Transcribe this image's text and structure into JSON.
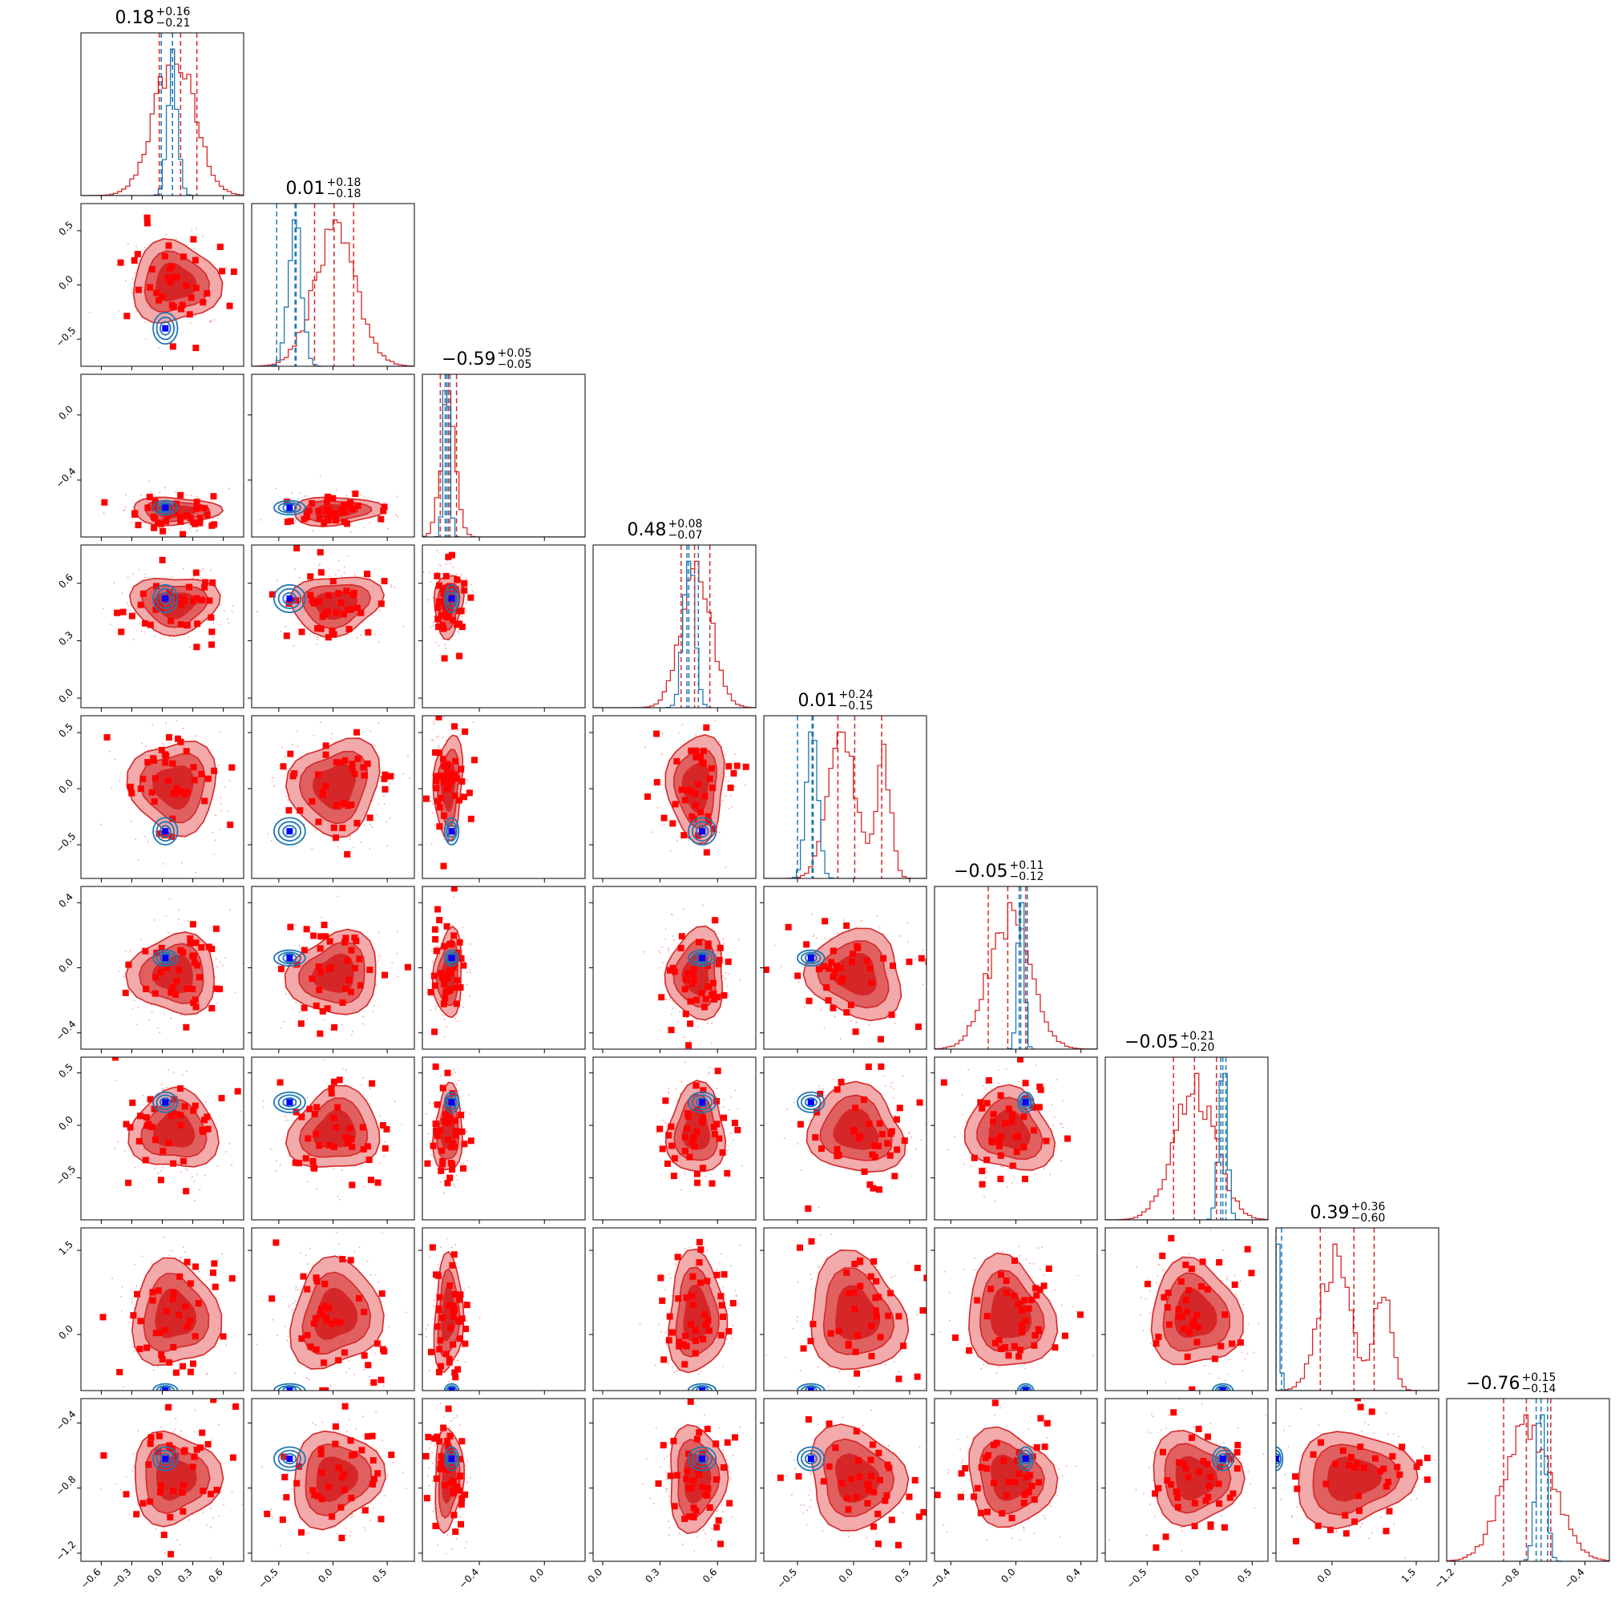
{
  "colors": {
    "red": "#d62728",
    "red_fill_outer": "#f2aaaa",
    "red_fill_inner": "#e06060",
    "red_core": "#d62728",
    "red_marker": "#ff0000",
    "blue": "#1f77b4",
    "blue_marker": "#0000ff",
    "frame": "#000000"
  },
  "chart_data": {
    "type": "corner",
    "n_params": 9,
    "title_format": "median with +upper/-lower errors",
    "diagonal_titles": [
      {
        "value": "0.18",
        "plus": "+0.16",
        "minus": "−0.21"
      },
      {
        "value": "0.01",
        "plus": "+0.18",
        "minus": "−0.18"
      },
      {
        "value": "−0.59",
        "plus": "+0.05",
        "minus": "−0.05"
      },
      {
        "value": "0.48",
        "plus": "+0.08",
        "minus": "−0.07"
      },
      {
        "value": "0.01",
        "plus": "+0.24",
        "minus": "−0.15"
      },
      {
        "value": "−0.05",
        "plus": "+0.11",
        "minus": "−0.12"
      },
      {
        "value": "−0.05",
        "plus": "+0.21",
        "minus": "−0.20"
      },
      {
        "value": "0.39",
        "plus": "+0.36",
        "minus": "−0.60"
      },
      {
        "value": "−0.76",
        "plus": "+0.15",
        "minus": "−0.14"
      }
    ],
    "axis_ranges": [
      [
        -0.8,
        0.8
      ],
      [
        -0.75,
        0.75
      ],
      [
        -0.75,
        0.25
      ],
      [
        -0.05,
        0.8
      ],
      [
        -0.8,
        0.65
      ],
      [
        -0.5,
        0.5
      ],
      [
        -0.9,
        0.65
      ],
      [
        -1.0,
        1.9
      ],
      [
        -1.25,
        -0.25
      ]
    ],
    "x_ticks": [
      [
        "−0.6",
        "−0.3",
        "0.0",
        "0.3",
        "0.6"
      ],
      [
        "−0.5",
        "0.0",
        "0.5"
      ],
      [
        "−0.4",
        "0.0"
      ],
      [
        "0.0",
        "0.3",
        "0.6"
      ],
      [
        "−0.5",
        "0.0",
        "0.5"
      ],
      [
        "−0.4",
        "0.0",
        "0.4"
      ],
      [
        "−0.5",
        "0.0",
        "0.5"
      ],
      [
        "0.0",
        "1.5"
      ],
      [
        "−1.2",
        "−0.8",
        "−0.4"
      ]
    ],
    "x_tick_values": [
      [
        -0.6,
        -0.3,
        0.0,
        0.3,
        0.6
      ],
      [
        -0.5,
        0.0,
        0.5
      ],
      [
        -0.4,
        0.0
      ],
      [
        0.0,
        0.3,
        0.6
      ],
      [
        -0.5,
        0.0,
        0.5
      ],
      [
        -0.4,
        0.0,
        0.4
      ],
      [
        -0.5,
        0.0,
        0.5
      ],
      [
        0.0,
        1.5
      ],
      [
        -1.2,
        -0.8,
        -0.4
      ]
    ],
    "y_ticks": [
      [],
      [
        "−0.5",
        "0.0",
        "0.5"
      ],
      [
        "−0.4",
        "0.0"
      ],
      [
        "0.0",
        "0.3",
        "0.6"
      ],
      [
        "−0.5",
        "0.0",
        "0.5"
      ],
      [
        "−0.4",
        "0.0",
        "0.4"
      ],
      [
        "−0.5",
        "0.0",
        "0.5"
      ],
      [
        "0.0",
        "1.5"
      ],
      [
        "−1.2",
        "−0.8",
        "−0.4"
      ]
    ],
    "y_tick_values": [
      [],
      [
        -0.5,
        0.0,
        0.5
      ],
      [
        -0.4,
        0.0
      ],
      [
        0.0,
        0.3,
        0.6
      ],
      [
        -0.5,
        0.0,
        0.5
      ],
      [
        -0.4,
        0.0,
        0.4
      ],
      [
        -0.5,
        0.0,
        0.5
      ],
      [
        0.0,
        1.5
      ],
      [
        -1.2,
        -0.8,
        -0.4
      ]
    ],
    "red_series": {
      "median": [
        0.18,
        0.01,
        -0.59,
        0.48,
        0.01,
        -0.05,
        -0.05,
        0.39,
        -0.76
      ],
      "lower": [
        -0.03,
        -0.17,
        -0.64,
        0.41,
        -0.14,
        -0.17,
        -0.25,
        -0.21,
        -0.9
      ],
      "upper": [
        0.34,
        0.19,
        -0.54,
        0.56,
        0.25,
        0.06,
        0.16,
        0.75,
        -0.61
      ],
      "spread": [
        0.2,
        0.2,
        0.045,
        0.08,
        0.22,
        0.13,
        0.2,
        0.5,
        0.15
      ],
      "center": [
        0.12,
        0.02,
        -0.59,
        0.49,
        0.02,
        -0.04,
        -0.05,
        0.35,
        -0.74
      ]
    },
    "blue_series": {
      "median": [
        0.1,
        -0.35,
        -0.6,
        0.45,
        -0.37,
        0.03,
        0.22,
        -1.0,
        -0.67
      ],
      "lower": [
        -0.01,
        -0.52,
        -0.61,
        0.44,
        -0.5,
        0.02,
        0.2,
        -1.1,
        -0.7
      ],
      "upper": [
        0.1,
        -0.34,
        -0.58,
        0.5,
        -0.36,
        0.07,
        0.25,
        -0.9,
        -0.63
      ],
      "spread": [
        0.05,
        0.06,
        0.018,
        0.03,
        0.05,
        0.02,
        0.04,
        0.05,
        0.03
      ],
      "truth": [
        0.03,
        -0.4,
        -0.57,
        0.52,
        -0.38,
        0.06,
        0.22,
        -1.0,
        -0.62
      ]
    }
  }
}
